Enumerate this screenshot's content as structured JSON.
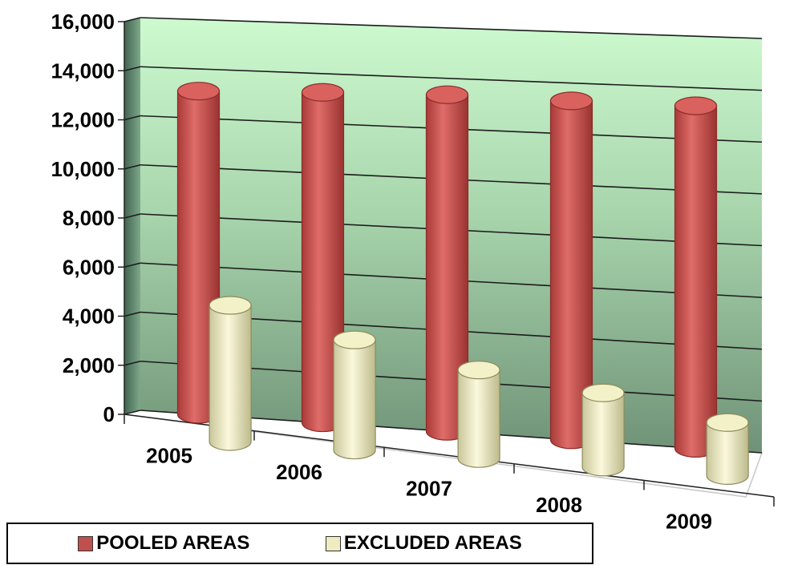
{
  "chart_data": {
    "type": "bar",
    "categories": [
      "2005",
      "2006",
      "2007",
      "2008",
      "2009"
    ],
    "series": [
      {
        "name": "POOLED AREAS",
        "values": [
          13100,
          13250,
          13350,
          13300,
          13300
        ],
        "color": "#c0504d"
      },
      {
        "name": "EXCLUDED AREAS",
        "values": [
          5500,
          4400,
          3500,
          2900,
          2050
        ],
        "color": "#eeecc0"
      }
    ],
    "ylim": [
      0,
      16000
    ],
    "yticks": [
      "0",
      "2,000",
      "4,000",
      "6,000",
      "8,000",
      "10,000",
      "12,000",
      "14,000",
      "16,000"
    ],
    "grid": true,
    "style": "3d-cylinder",
    "legend_position": "bottom-left"
  }
}
